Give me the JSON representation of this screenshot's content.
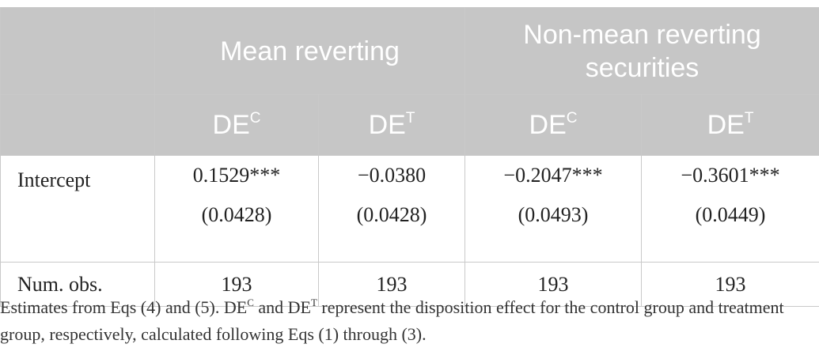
{
  "table": {
    "header_group_1": "Mean reverting",
    "header_group_2_line1": "Non-mean reverting",
    "header_group_2_line2": "securities",
    "col_prefix": "DE",
    "col_sup_control": "C",
    "col_sup_treatment": "T",
    "rows": [
      {
        "label": "Intercept",
        "estimates": [
          "0.1529***",
          "−0.0380",
          "−0.2047***",
          "−0.3601***"
        ],
        "std_errors": [
          "(0.0428)",
          "(0.0428)",
          "(0.0493)",
          "(0.0449)"
        ]
      },
      {
        "label": "Num. obs.",
        "values": [
          "193",
          "193",
          "193",
          "193"
        ]
      }
    ]
  },
  "note": {
    "part1": "Estimates from Eqs (4) and (5). DE",
    "sup1": "C",
    "part2": " and DE",
    "sup2": "T",
    "part3": " represent the disposition effect for the control group and treatment group, respectively, calculated following Eqs (1) through (3)."
  }
}
